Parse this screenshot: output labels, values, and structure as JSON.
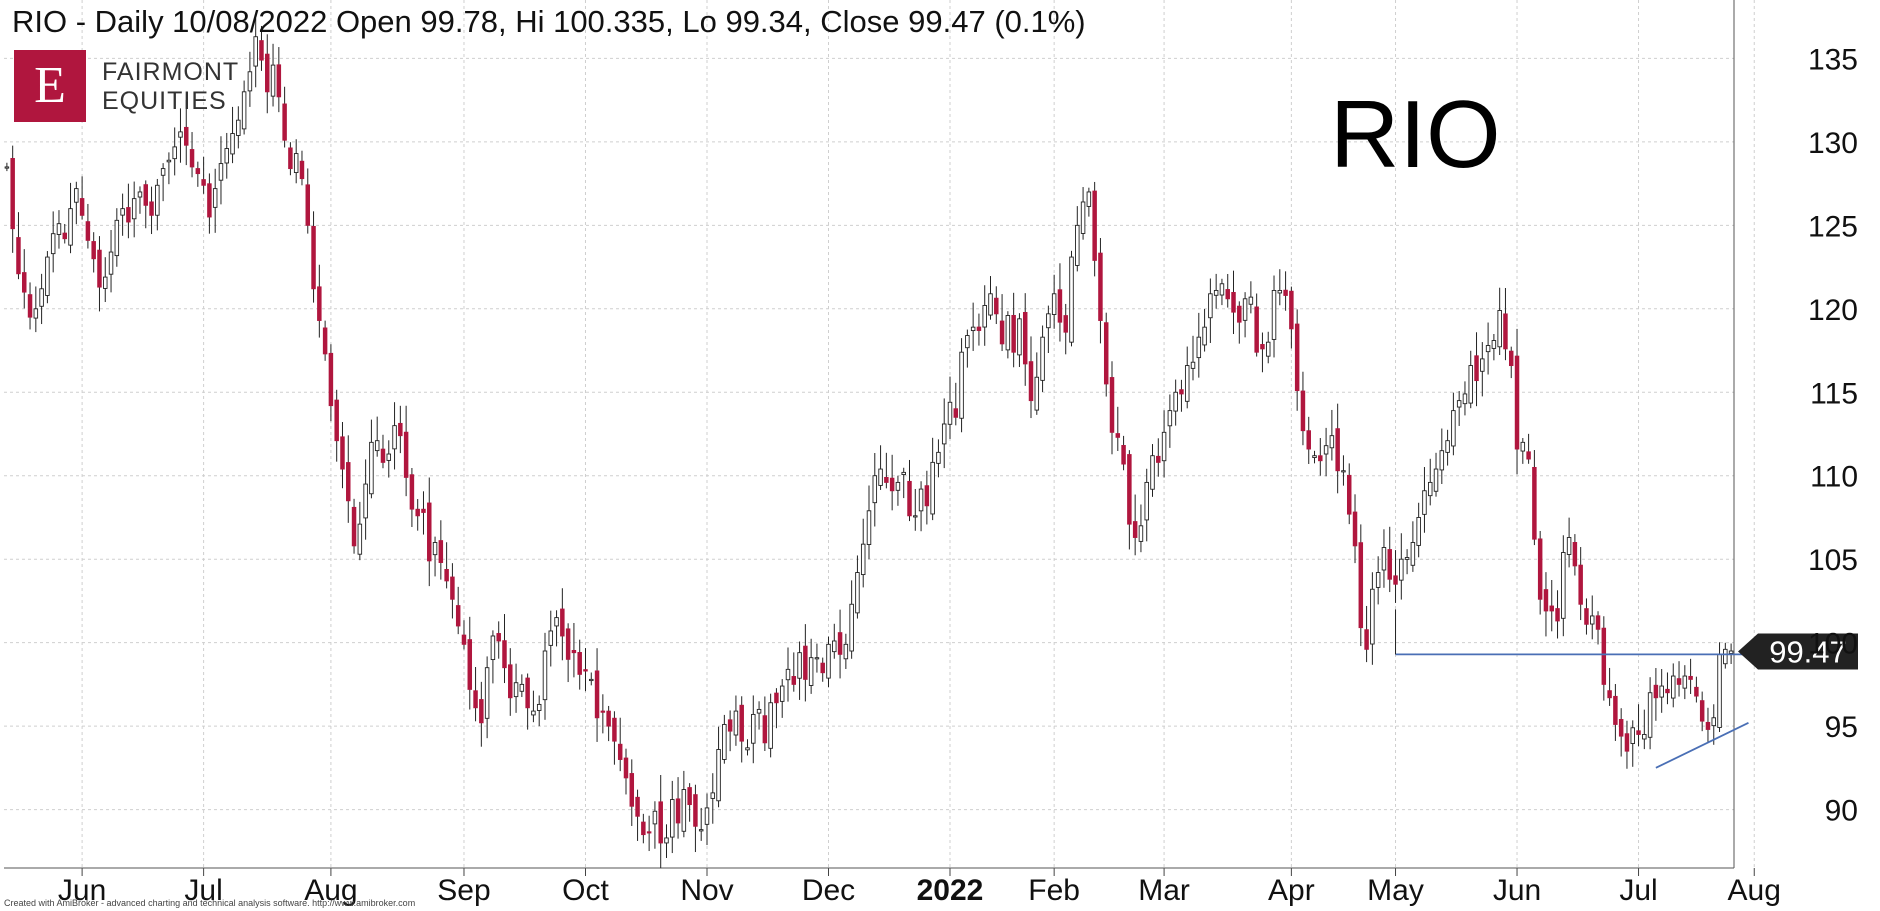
{
  "header": {
    "title": "RIO - Daily 10/08/2022 Open 99.78, Hi 100.335, Lo 99.34, Close 99.47 (0.1%)",
    "ticker": "RIO"
  },
  "logo": {
    "letter": "E",
    "line1": "FAIRMONT",
    "line2": "EQUITIES"
  },
  "footer": {
    "credit": "Created with AmiBroker - advanced charting and technical analysis software. http://www.amibroker.com"
  },
  "colors": {
    "up": "#ffffff",
    "down": "#b0163e",
    "outline": "#222222",
    "trendline": "#4a6fb5",
    "grid": "#cfcfcf",
    "tag": "#222222"
  },
  "chart_data": {
    "type": "candlestick",
    "title": "RIO - Daily 10/08/2022 Open 99.78, Hi 100.335, Lo 99.34, Close 99.47 (0.1%)",
    "ylim": [
      86.5,
      138.5
    ],
    "y_ticks": [
      90,
      95,
      100,
      105,
      110,
      115,
      120,
      125,
      130,
      135
    ],
    "x_ticks": [
      {
        "label": "Jun",
        "bar": 13
      },
      {
        "label": "Jul",
        "bar": 34
      },
      {
        "label": "Aug",
        "bar": 56
      },
      {
        "label": "Sep",
        "bar": 79
      },
      {
        "label": "Oct",
        "bar": 100
      },
      {
        "label": "Nov",
        "bar": 121
      },
      {
        "label": "Dec",
        "bar": 142
      },
      {
        "label": "2022",
        "bar": 163,
        "bold": true
      },
      {
        "label": "Feb",
        "bar": 181
      },
      {
        "label": "Mar",
        "bar": 200
      },
      {
        "label": "Apr",
        "bar": 222
      },
      {
        "label": "May",
        "bar": 240
      },
      {
        "label": "Jun",
        "bar": 261
      },
      {
        "label": "Jul",
        "bar": 282
      },
      {
        "label": "Aug",
        "bar": 302
      }
    ],
    "last_price": 99.47,
    "last_price_label": "99.47",
    "support_line": {
      "x0_bar": 240,
      "x1_bar": 305,
      "y": 99.3
    },
    "trend_line": {
      "x0_bar": 285,
      "y0": 92.5,
      "x1_bar": 301,
      "y1": 95.2
    },
    "closes": [
      128.5,
      124.8,
      122.1,
      121.0,
      119.5,
      120.0,
      121.2,
      123.1,
      124.5,
      125.1,
      124.2,
      126.0,
      127.2,
      125.6,
      124.1,
      123.0,
      121.3,
      121.9,
      123.4,
      125.3,
      126.0,
      125.2,
      126.6,
      127.0,
      126.2,
      125.6,
      127.4,
      128.4,
      128.9,
      129.7,
      130.6,
      129.8,
      128.5,
      128.1,
      127.4,
      125.5,
      127.2,
      128.7,
      129.6,
      130.5,
      131.3,
      133.0,
      134.2,
      136.3,
      134.9,
      133.0,
      134.6,
      132.7,
      130.1,
      128.4,
      129.3,
      127.8,
      125.0,
      121.2,
      119.3,
      117.3,
      114.2,
      112.1,
      110.4,
      108.5,
      105.8,
      107.1,
      109.5,
      112.0,
      112.1,
      110.8,
      111.3,
      113.0,
      112.4,
      109.9,
      108.0,
      107.6,
      107.8,
      104.9,
      106.0,
      104.8,
      103.7,
      102.6,
      101.0,
      99.9,
      97.2,
      96.1,
      95.2,
      98.5,
      100.4,
      100.1,
      98.5,
      96.7,
      97.6,
      97.5,
      96.1,
      95.9,
      96.3,
      99.5,
      100.7,
      101.5,
      100.4,
      99.0,
      99.4,
      98.1,
      98.3,
      97.8,
      95.5,
      95.9,
      95.0,
      94.1,
      93.0,
      91.9,
      90.2,
      89.6,
      88.5,
      88.6,
      89.9,
      88.0,
      88.3,
      90.6,
      89.2,
      91.2,
      90.3,
      89.0,
      88.8,
      90.1,
      91.0,
      93.6,
      95.1,
      94.7,
      95.9,
      94.1,
      93.7,
      95.7,
      96.0,
      94.0,
      96.4,
      96.4,
      97.4,
      98.4,
      97.5,
      99.4,
      97.8,
      99.1,
      99.1,
      98.2,
      99.9,
      100.1,
      99.3,
      99.9,
      102.3,
      104.2,
      105.9,
      107.9,
      110.0,
      110.4,
      109.6,
      109.1,
      109.6,
      110.2,
      107.6,
      107.6,
      109.2,
      108.2,
      110.8,
      111.4,
      113.1,
      114.4,
      113.5,
      117.4,
      118.4,
      118.9,
      118.7,
      120.2,
      120.9,
      119.7,
      117.9,
      119.6,
      117.4,
      119.4,
      116.7,
      114.5,
      115.9,
      118.3,
      119.7,
      120.9,
      119.2,
      118.6,
      123.1,
      125.0,
      126.4,
      127.0,
      122.9,
      119.3,
      115.5,
      112.6,
      112.3,
      110.7,
      107.1,
      106.3,
      107.0,
      109.6,
      111.2,
      110.8,
      112.6,
      113.9,
      115.0,
      114.9,
      116.6,
      116.8,
      118.3,
      118.9,
      120.9,
      121.1,
      121.5,
      120.6,
      119.8,
      119.2,
      120.6,
      120.7,
      117.4,
      117.6,
      118.0,
      121.1,
      121.1,
      120.8,
      118.8,
      115.1,
      112.7,
      111.6,
      111.2,
      110.9,
      111.8,
      112.4,
      110.3,
      110.3,
      107.7,
      105.8,
      100.9,
      99.6,
      103.2,
      104.2,
      105.7,
      103.8,
      103.5,
      105.0,
      105.1,
      106.0,
      107.5,
      109.1,
      109.6,
      110.4,
      111.5,
      112.1,
      113.9,
      114.5,
      114.9,
      116.6,
      115.7,
      117.0,
      117.8,
      118.1,
      119.9,
      117.6,
      116.6,
      111.6,
      112.0,
      111.0,
      106.2,
      102.6,
      101.9,
      101.9,
      101.3,
      105.4,
      106.3,
      104.6,
      102.3,
      101.1,
      101.6,
      100.8,
      97.5,
      96.7,
      95.1,
      94.4,
      93.5,
      94.9,
      94.5,
      94.5,
      97.0,
      96.7,
      97.4,
      97.0,
      98.0,
      97.5,
      98.0,
      97.8,
      96.8,
      95.3,
      94.8,
      95.5,
      99.3,
      99.6,
      99.5
    ]
  }
}
